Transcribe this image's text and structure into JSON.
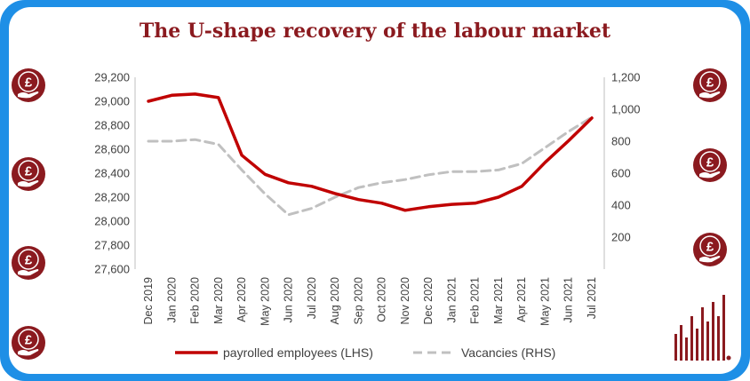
{
  "chart_data": {
    "type": "line",
    "title": "The U-shape recovery of the labour market",
    "categories": [
      "Dec 2019",
      "Jan 2020",
      "Feb 2020",
      "Mar 2020",
      "Apr 2020",
      "May 2020",
      "Jun 2020",
      "Jul 2020",
      "Aug 2020",
      "Sep 2020",
      "Oct 2020",
      "Nov 2020",
      "Dec 2020",
      "Jan 2021",
      "Feb 2021",
      "Mar 2021",
      "Apr 2021",
      "May 2021",
      "Jun 2021",
      "Jul 2021"
    ],
    "series": [
      {
        "name": "payrolled employees (LHS)",
        "axis": "left",
        "color": "#c00000",
        "style": "solid",
        "values": [
          29000,
          29050,
          29060,
          29030,
          28550,
          28390,
          28320,
          28290,
          28230,
          28180,
          28150,
          28090,
          28120,
          28140,
          28150,
          28200,
          28290,
          28490,
          28670,
          28860
        ]
      },
      {
        "name": "Vacancies (RHS)",
        "axis": "right",
        "color": "#c0c0c0",
        "style": "dashed",
        "values": [
          800,
          800,
          810,
          780,
          620,
          470,
          340,
          380,
          450,
          510,
          540,
          560,
          590,
          610,
          610,
          620,
          660,
          760,
          860,
          950
        ]
      }
    ],
    "y_left": {
      "min": 27600,
      "max": 29200,
      "step": 200,
      "ticks": [
        "27,600",
        "27,800",
        "28,000",
        "28,200",
        "28,400",
        "28,600",
        "28,800",
        "29,000",
        "29,200"
      ]
    },
    "y_right": {
      "min": 0,
      "max": 1200,
      "step": 200,
      "ticks": [
        "200",
        "400",
        "600",
        "800",
        "1,000",
        "1,200"
      ]
    },
    "legend": {
      "position": "bottom",
      "entries": [
        "payrolled employees (LHS)",
        "Vacancies (RHS)"
      ]
    },
    "grid": false
  },
  "decor": {
    "frame_color": "#1e8fe6",
    "brand_color": "#8b1a1f",
    "left_icons": [
      "pound-hand-icon",
      "pound-hand-icon",
      "pound-hand-icon",
      "pound-hand-icon"
    ],
    "right_icons": [
      "pound-hand-icon",
      "pound-hand-icon",
      "pound-hand-icon"
    ],
    "corner_icon": "bar-logo-icon"
  }
}
